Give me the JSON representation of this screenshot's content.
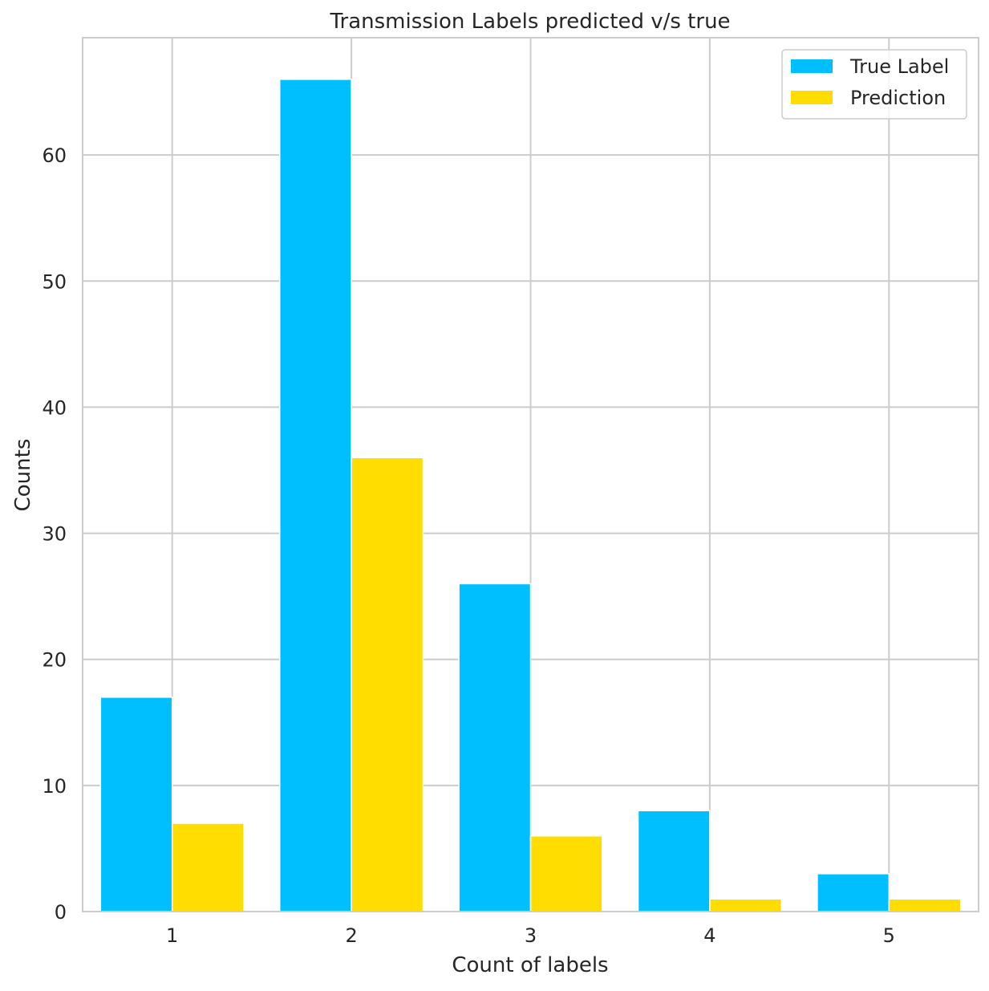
{
  "chart_data": {
    "type": "bar",
    "title": "Transmission Labels predicted v/s true",
    "xlabel": "Count of labels",
    "ylabel": "Counts",
    "categories": [
      "1",
      "2",
      "3",
      "4",
      "5"
    ],
    "series": [
      {
        "name": "True Label",
        "values": [
          17,
          66,
          26,
          8,
          3
        ],
        "color": "#00BFFF"
      },
      {
        "name": "Prediction",
        "values": [
          7,
          36,
          6,
          1,
          1
        ],
        "color": "#FFDD00"
      }
    ],
    "ylim": [
      0,
      69.3
    ],
    "yticks": [
      0,
      10,
      20,
      30,
      40,
      50,
      60
    ],
    "grid": true,
    "legend_position": "top-right"
  }
}
